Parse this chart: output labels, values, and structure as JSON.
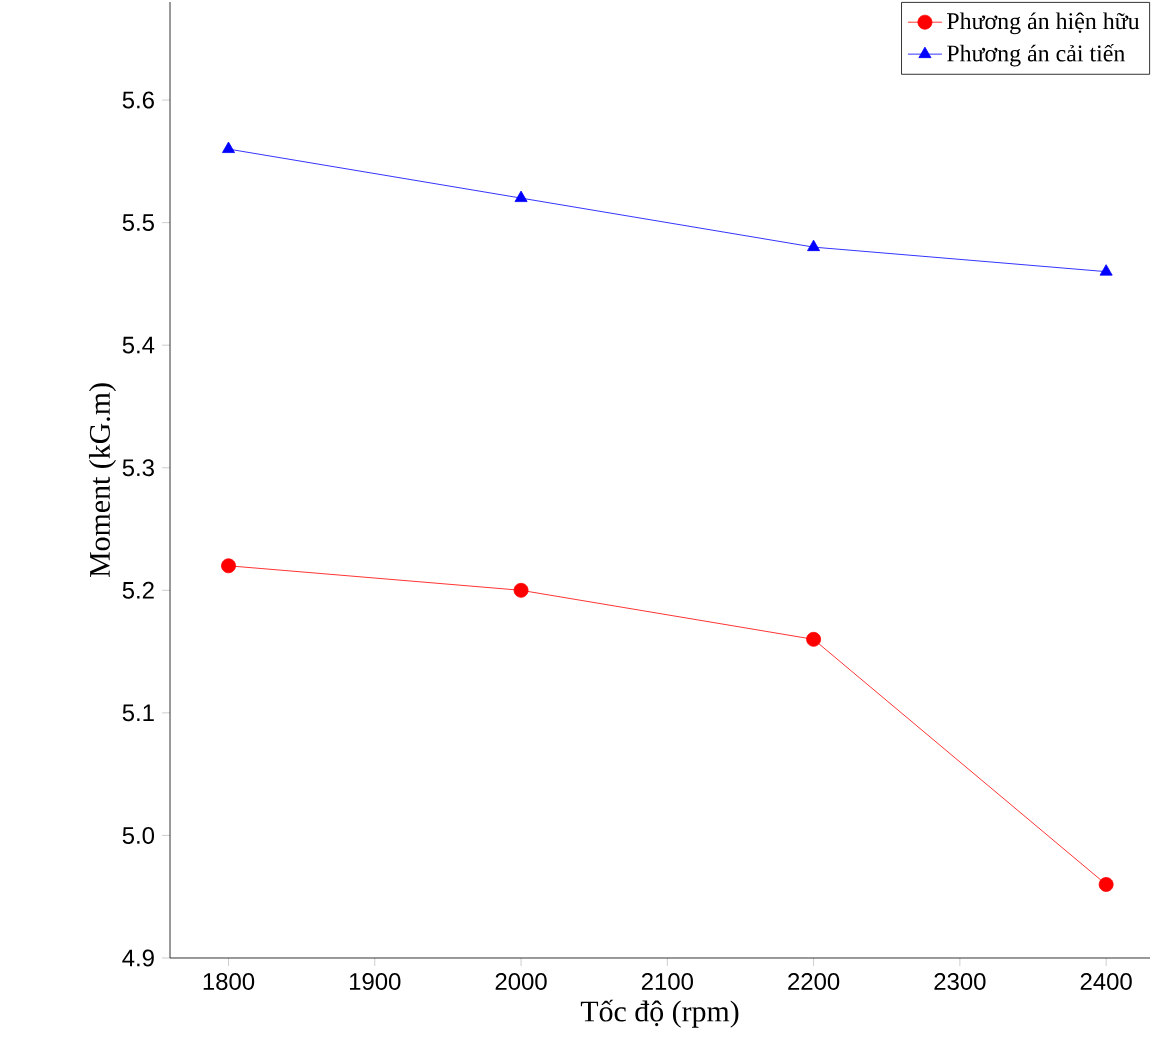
{
  "chart_data": {
    "type": "line",
    "xlabel": "Tốc độ (rpm)",
    "ylabel": "Moment (kG.m)",
    "x": [
      1800,
      2000,
      2200,
      2400
    ],
    "series": [
      {
        "name": "Phương án hiện hữu",
        "color": "#ff0000",
        "marker": "circle",
        "values": [
          5.22,
          5.2,
          5.16,
          4.96
        ]
      },
      {
        "name": "Phương án cải tiến",
        "color": "#0000ff",
        "marker": "triangle",
        "values": [
          5.56,
          5.52,
          5.48,
          5.46
        ]
      }
    ],
    "xlim": [
      1760,
      2430
    ],
    "ylim": [
      4.9,
      5.68
    ],
    "xticks": [
      1800,
      1900,
      2000,
      2100,
      2200,
      2300,
      2400
    ],
    "yticks": [
      4.9,
      {
        "value": 5.0,
        "label": "5.0"
      },
      5.1,
      5.2,
      5.3,
      5.4,
      5.5,
      5.6
    ],
    "grid": false,
    "legend": "top right",
    "line_style": "solid"
  }
}
